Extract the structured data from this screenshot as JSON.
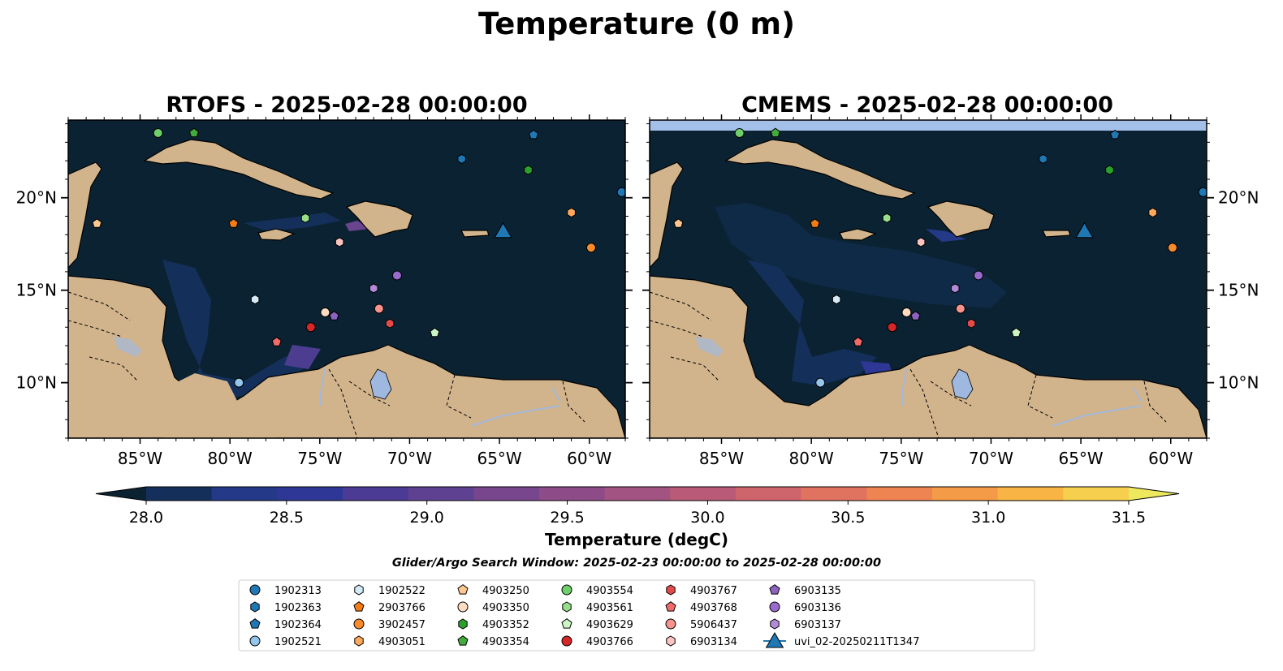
{
  "figure": {
    "title": "Temperature (0 m)",
    "search_window": "Glider/Argo Search Window: 2025-02-23 00:00:00 to 2025-02-28 00:00:00"
  },
  "panels": [
    {
      "title": "RTOFS - 2025-02-28 00:00:00",
      "model": "RTOFS",
      "has_top_band": false
    },
    {
      "title": "CMEMS - 2025-02-28 00:00:00",
      "model": "CMEMS",
      "has_top_band": true
    }
  ],
  "map_extent": {
    "lon": [
      -89,
      -58
    ],
    "lat": [
      7,
      24.2
    ]
  },
  "lon_ticks": {
    "values": [
      -85,
      -80,
      -75,
      -70,
      -65,
      -60
    ],
    "labels": [
      "85°W",
      "80°W",
      "75°W",
      "70°W",
      "65°W",
      "60°W"
    ]
  },
  "lat_ticks": {
    "values": [
      10,
      15,
      20
    ],
    "labels": [
      "10°N",
      "15°N",
      "20°N"
    ]
  },
  "colorbar": {
    "label": "Temperature (degC)",
    "min": 28.0,
    "max": 31.5,
    "extend": "both",
    "tick_values": [
      28.0,
      28.5,
      29.0,
      29.5,
      30.0,
      30.5,
      31.0,
      31.5
    ],
    "tick_labels": [
      "28.0",
      "28.5",
      "29.0",
      "29.5",
      "30.0",
      "30.5",
      "31.0",
      "31.5"
    ],
    "colors": [
      "#0b2232",
      "#14305a",
      "#243a88",
      "#2e3795",
      "#4b3b94",
      "#5f4191",
      "#77468c",
      "#8d4c87",
      "#a35381",
      "#b95b78",
      "#cf656c",
      "#e0735f",
      "#ee8452",
      "#f49b48",
      "#f8b445",
      "#f6cf4f",
      "#eee85f"
    ]
  },
  "colors": {
    "ocean": "#0b2232",
    "land": "#d2b48c",
    "lake": "#9fb8e0",
    "top_band": "#a4bfe8",
    "coast": "#000000",
    "glider": "#1f77b4"
  },
  "floats": [
    {
      "id": "1902313",
      "marker": "circle",
      "color": "#1f77b4",
      "lon": -58.2,
      "lat": 20.3
    },
    {
      "id": "1902363",
      "marker": "hexagon",
      "color": "#1f77b4",
      "lon": -67.1,
      "lat": 22.1
    },
    {
      "id": "1902364",
      "marker": "pentagon",
      "color": "#1f77b4",
      "lon": -63.1,
      "lat": 23.4
    },
    {
      "id": "1902521",
      "marker": "circle",
      "color": "#95c6ec",
      "lon": -79.5,
      "lat": 10.0
    },
    {
      "id": "1902522",
      "marker": "hexagon",
      "color": "#d3ebf9",
      "lon": -78.6,
      "lat": 14.5
    },
    {
      "id": "2903766",
      "marker": "pentagon",
      "color": "#f57c14",
      "lon": -79.8,
      "lat": 18.6
    },
    {
      "id": "3902457",
      "marker": "circle",
      "color": "#f98b2b",
      "lon": -59.9,
      "lat": 17.3
    },
    {
      "id": "4903051",
      "marker": "hexagon",
      "color": "#ffa85c",
      "lon": -61.0,
      "lat": 19.2
    },
    {
      "id": "4903250",
      "marker": "pentagon",
      "color": "#ffc890",
      "lon": -87.4,
      "lat": 18.6
    },
    {
      "id": "4903350",
      "marker": "circle",
      "color": "#ffdcc2",
      "lon": -74.7,
      "lat": 13.8
    },
    {
      "id": "4903352",
      "marker": "hexagon",
      "color": "#2ca02c",
      "lon": -63.4,
      "lat": 21.5
    },
    {
      "id": "4903354",
      "marker": "pentagon",
      "color": "#41ab3b",
      "lon": -82.0,
      "lat": 23.5
    },
    {
      "id": "4903554",
      "marker": "circle",
      "color": "#6fcf6b",
      "lon": -84.0,
      "lat": 23.5
    },
    {
      "id": "4903561",
      "marker": "hexagon",
      "color": "#98df8a",
      "lon": -75.8,
      "lat": 18.9
    },
    {
      "id": "4903629",
      "marker": "pentagon",
      "color": "#ccf5c5",
      "lon": -68.6,
      "lat": 12.7
    },
    {
      "id": "4903766",
      "marker": "circle",
      "color": "#d62728",
      "lon": -75.5,
      "lat": 13.0
    },
    {
      "id": "4903767",
      "marker": "hexagon",
      "color": "#e34a4b",
      "lon": -71.1,
      "lat": 13.2
    },
    {
      "id": "4903768",
      "marker": "pentagon",
      "color": "#f26b6b",
      "lon": -77.4,
      "lat": 12.2
    },
    {
      "id": "5906437",
      "marker": "circle",
      "color": "#f7928c",
      "lon": -71.7,
      "lat": 14.0
    },
    {
      "id": "6903134",
      "marker": "hexagon",
      "color": "#fbc4c0",
      "lon": -73.9,
      "lat": 17.6
    },
    {
      "id": "6903135",
      "marker": "pentagon",
      "color": "#8e62c1",
      "lon": -74.2,
      "lat": 13.6
    },
    {
      "id": "6903136",
      "marker": "circle",
      "color": "#9a6bcc",
      "lon": -70.7,
      "lat": 15.8
    },
    {
      "id": "6903137",
      "marker": "hexagon",
      "color": "#b28ad8",
      "lon": -72.0,
      "lat": 15.1
    }
  ],
  "glider": {
    "id": "uvi_02-20250211T1347",
    "marker": "triangle",
    "color": "#1f77b4",
    "lon": -64.8,
    "lat": 18.2
  }
}
